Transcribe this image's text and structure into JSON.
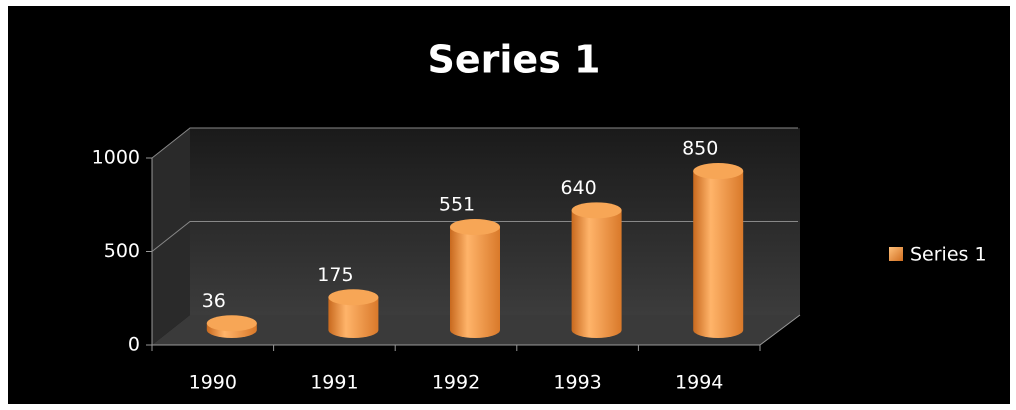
{
  "chart_data": {
    "type": "bar3d",
    "title": "Series 1",
    "categories": [
      "1990",
      "1991",
      "1992",
      "1993",
      "1994"
    ],
    "series": [
      {
        "name": "Series 1",
        "color": "#f39a43",
        "values": [
          36,
          175,
          551,
          640,
          850
        ]
      }
    ],
    "ylim": [
      0,
      1000
    ],
    "yticks": [
      0,
      500,
      1000
    ],
    "grid": true,
    "legend": "right"
  }
}
